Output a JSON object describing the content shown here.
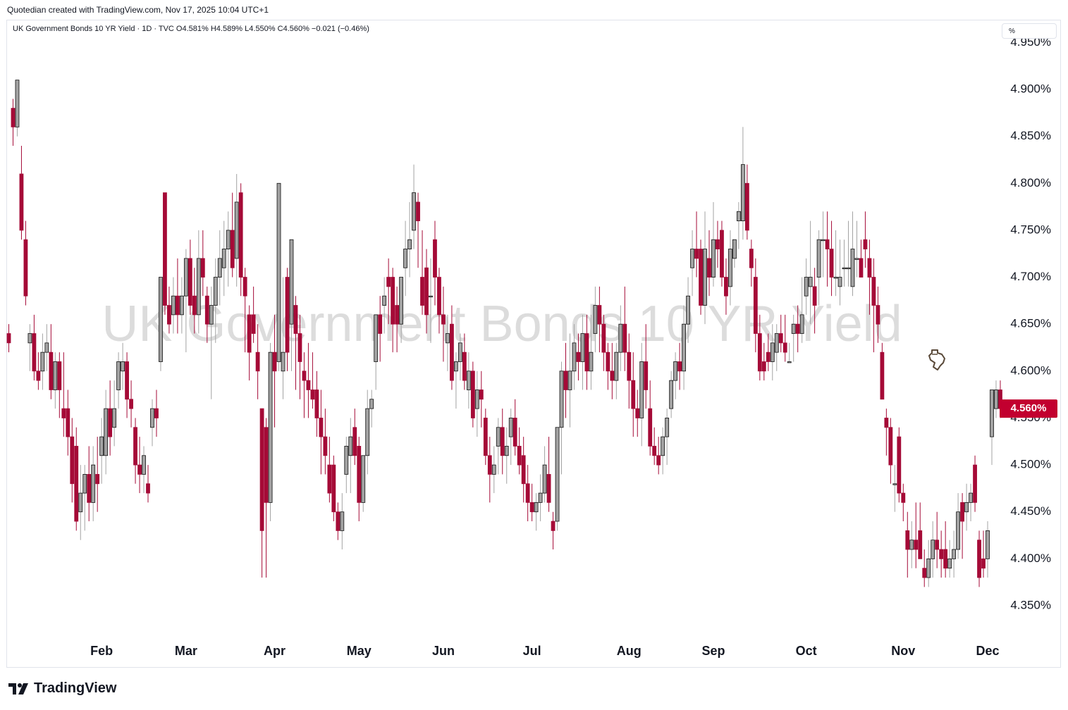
{
  "credit": "Quotedian created with TradingView.com, Nov 17, 2025 10:04 UTC+1",
  "header": {
    "symbol_line": "UK Government Bonds 10 YR Yield · 1D · TVC  O4.581%  H4.589%  L4.550%  C4.560%  −0.021 (−0.46%)",
    "unit_button": "%"
  },
  "brand": {
    "logo_text": "TradingView"
  },
  "colors": {
    "up": "#a3a3a3",
    "down": "#a50a37",
    "watermark": "#dcdcdc",
    "price_label_bg": "#c2002f"
  },
  "chart_data": {
    "type": "candlestick",
    "watermark": "UK Government Bonds 10 YR Yield",
    "last_price_label": "4.560%",
    "last_price": 4.56,
    "ylim": [
      4.3,
      4.96
    ],
    "y_ticks": [
      {
        "value": 4.95,
        "label": "4.950%"
      },
      {
        "value": 4.9,
        "label": "4.900%"
      },
      {
        "value": 4.85,
        "label": "4.850%"
      },
      {
        "value": 4.8,
        "label": "4.800%"
      },
      {
        "value": 4.75,
        "label": "4.750%"
      },
      {
        "value": 4.7,
        "label": "4.700%"
      },
      {
        "value": 4.65,
        "label": "4.650%"
      },
      {
        "value": 4.6,
        "label": "4.600%"
      },
      {
        "value": 4.55,
        "label": "4.550%"
      },
      {
        "value": 4.5,
        "label": "4.500%"
      },
      {
        "value": 4.45,
        "label": "4.450%"
      },
      {
        "value": 4.4,
        "label": "4.400%"
      },
      {
        "value": 4.35,
        "label": "4.350%"
      }
    ],
    "x_ticks": [
      {
        "index": 22,
        "label": "Feb"
      },
      {
        "index": 42,
        "label": "Mar"
      },
      {
        "index": 63,
        "label": "Apr"
      },
      {
        "index": 83,
        "label": "May"
      },
      {
        "index": 103,
        "label": "Jun"
      },
      {
        "index": 124,
        "label": "Jul"
      },
      {
        "index": 147,
        "label": "Aug"
      },
      {
        "index": 167,
        "label": "Sep"
      },
      {
        "index": 189,
        "label": "Oct"
      },
      {
        "index": 212,
        "label": "Nov"
      },
      {
        "index": 232,
        "label": "Dec"
      }
    ],
    "x_range": [
      0,
      241
    ],
    "ohlc": [
      [
        4.64,
        4.65,
        4.62,
        4.63
      ],
      [
        4.88,
        4.89,
        4.84,
        4.86
      ],
      [
        4.86,
        4.91,
        4.85,
        4.91
      ],
      [
        4.81,
        4.84,
        4.74,
        4.75
      ],
      [
        4.74,
        4.76,
        4.67,
        4.68
      ],
      [
        4.63,
        4.65,
        4.6,
        4.64
      ],
      [
        4.64,
        4.66,
        4.59,
        4.6
      ],
      [
        4.6,
        4.62,
        4.58,
        4.59
      ],
      [
        4.6,
        4.64,
        4.58,
        4.62
      ],
      [
        4.62,
        4.65,
        4.6,
        4.63
      ],
      [
        4.62,
        4.65,
        4.57,
        4.58
      ],
      [
        4.58,
        4.62,
        4.56,
        4.61
      ],
      [
        4.61,
        4.62,
        4.55,
        4.58
      ],
      [
        4.56,
        4.62,
        4.53,
        4.55
      ],
      [
        4.56,
        4.58,
        4.51,
        4.53
      ],
      [
        4.53,
        4.55,
        4.46,
        4.48
      ],
      [
        4.52,
        4.54,
        4.43,
        4.44
      ],
      [
        4.45,
        4.5,
        4.42,
        4.47
      ],
      [
        4.47,
        4.5,
        4.43,
        4.49
      ],
      [
        4.49,
        4.52,
        4.44,
        4.46
      ],
      [
        4.46,
        4.52,
        4.44,
        4.5
      ],
      [
        4.49,
        4.53,
        4.45,
        4.48
      ],
      [
        4.51,
        4.55,
        4.48,
        4.53
      ],
      [
        4.51,
        4.58,
        4.49,
        4.56
      ],
      [
        4.56,
        4.59,
        4.51,
        4.53
      ],
      [
        4.54,
        4.59,
        4.52,
        4.56
      ],
      [
        4.58,
        4.62,
        4.56,
        4.61
      ],
      [
        4.6,
        4.63,
        4.58,
        4.61
      ],
      [
        4.61,
        4.62,
        4.55,
        4.57
      ],
      [
        4.57,
        4.59,
        4.54,
        4.56
      ],
      [
        4.54,
        4.55,
        4.48,
        4.5
      ],
      [
        4.5,
        4.53,
        4.47,
        4.49
      ],
      [
        4.49,
        4.52,
        4.47,
        4.51
      ],
      [
        4.48,
        4.5,
        4.46,
        4.47
      ],
      [
        4.54,
        4.57,
        4.52,
        4.56
      ],
      [
        4.56,
        4.58,
        4.53,
        4.55
      ],
      [
        4.61,
        4.7,
        4.6,
        4.7
      ],
      [
        4.79,
        4.79,
        4.66,
        4.67
      ],
      [
        4.67,
        4.69,
        4.64,
        4.65
      ],
      [
        4.66,
        4.7,
        4.64,
        4.68
      ],
      [
        4.68,
        4.72,
        4.64,
        4.66
      ],
      [
        4.66,
        4.7,
        4.64,
        4.68
      ],
      [
        4.68,
        4.73,
        4.62,
        4.72
      ],
      [
        4.72,
        4.74,
        4.66,
        4.67
      ],
      [
        4.68,
        4.71,
        4.64,
        4.66
      ],
      [
        4.66,
        4.75,
        4.64,
        4.72
      ],
      [
        4.72,
        4.75,
        4.68,
        4.7
      ],
      [
        4.68,
        4.69,
        4.63,
        4.65
      ],
      [
        4.65,
        4.69,
        4.57,
        4.67
      ],
      [
        4.67,
        4.72,
        4.63,
        4.7
      ],
      [
        4.7,
        4.75,
        4.67,
        4.72
      ],
      [
        4.71,
        4.76,
        4.68,
        4.73
      ],
      [
        4.73,
        4.77,
        4.69,
        4.75
      ],
      [
        4.75,
        4.79,
        4.7,
        4.71
      ],
      [
        4.72,
        4.81,
        4.69,
        4.78
      ],
      [
        4.79,
        4.8,
        4.68,
        4.7
      ],
      [
        4.7,
        4.71,
        4.62,
        4.68
      ],
      [
        4.66,
        4.67,
        4.59,
        4.62
      ],
      [
        4.66,
        4.69,
        4.63,
        4.64
      ],
      [
        4.62,
        4.65,
        4.57,
        4.6
      ],
      [
        4.56,
        4.56,
        4.38,
        4.43
      ],
      [
        4.54,
        4.55,
        4.38,
        4.46
      ],
      [
        4.46,
        4.63,
        4.44,
        4.62
      ],
      [
        4.62,
        4.66,
        4.54,
        4.6
      ],
      [
        4.61,
        4.8,
        4.6,
        4.8
      ],
      [
        4.6,
        4.7,
        4.57,
        4.62
      ],
      [
        4.7,
        4.71,
        4.6,
        4.62
      ],
      [
        4.65,
        4.74,
        4.6,
        4.74
      ],
      [
        4.67,
        4.68,
        4.58,
        4.64
      ],
      [
        4.64,
        4.66,
        4.57,
        4.61
      ],
      [
        4.6,
        4.62,
        4.55,
        4.59
      ],
      [
        4.59,
        4.63,
        4.55,
        4.58
      ],
      [
        4.58,
        4.62,
        4.56,
        4.57
      ],
      [
        4.58,
        4.6,
        4.53,
        4.55
      ],
      [
        4.55,
        4.58,
        4.49,
        4.53
      ],
      [
        4.53,
        4.56,
        4.49,
        4.51
      ],
      [
        4.5,
        4.53,
        4.46,
        4.47
      ],
      [
        4.5,
        4.51,
        4.44,
        4.45
      ],
      [
        4.45,
        4.46,
        4.42,
        4.43
      ],
      [
        4.43,
        4.47,
        4.41,
        4.45
      ],
      [
        4.49,
        4.53,
        4.47,
        4.52
      ],
      [
        4.51,
        4.55,
        4.47,
        4.53
      ],
      [
        4.54,
        4.56,
        4.5,
        4.51
      ],
      [
        4.52,
        4.53,
        4.44,
        4.46
      ],
      [
        4.46,
        4.51,
        4.45,
        4.51
      ],
      [
        4.51,
        4.58,
        4.49,
        4.56
      ],
      [
        4.56,
        4.58,
        4.54,
        4.57
      ],
      [
        4.61,
        4.66,
        4.58,
        4.66
      ],
      [
        4.66,
        4.68,
        4.61,
        4.64
      ],
      [
        4.67,
        4.7,
        4.64,
        4.68
      ],
      [
        4.7,
        4.72,
        4.65,
        4.69
      ],
      [
        4.7,
        4.71,
        4.62,
        4.65
      ],
      [
        4.67,
        4.69,
        4.62,
        4.65
      ],
      [
        4.65,
        4.7,
        4.63,
        4.7
      ],
      [
        4.71,
        4.76,
        4.68,
        4.73
      ],
      [
        4.73,
        4.78,
        4.7,
        4.74
      ],
      [
        4.75,
        4.82,
        4.73,
        4.79
      ],
      [
        4.78,
        4.79,
        4.71,
        4.76
      ],
      [
        4.7,
        4.75,
        4.66,
        4.67
      ],
      [
        4.71,
        4.73,
        4.64,
        4.66
      ],
      [
        4.68,
        4.72,
        4.63,
        4.68
      ],
      [
        4.74,
        4.76,
        4.67,
        4.7
      ],
      [
        4.7,
        4.71,
        4.64,
        4.66
      ],
      [
        4.66,
        4.69,
        4.61,
        4.65
      ],
      [
        4.63,
        4.66,
        4.6,
        4.64
      ],
      [
        4.65,
        4.67,
        4.58,
        4.59
      ],
      [
        4.6,
        4.62,
        4.56,
        4.61
      ],
      [
        4.61,
        4.64,
        4.59,
        4.63
      ],
      [
        4.62,
        4.64,
        4.58,
        4.59
      ],
      [
        4.58,
        4.62,
        4.56,
        4.6
      ],
      [
        4.6,
        4.61,
        4.54,
        4.55
      ],
      [
        4.56,
        4.6,
        4.53,
        4.58
      ],
      [
        4.58,
        4.6,
        4.54,
        4.57
      ],
      [
        4.55,
        4.56,
        4.5,
        4.51
      ],
      [
        4.51,
        4.53,
        4.46,
        4.49
      ],
      [
        4.49,
        4.52,
        4.47,
        4.5
      ],
      [
        4.52,
        4.55,
        4.49,
        4.54
      ],
      [
        4.54,
        4.56,
        4.49,
        4.51
      ],
      [
        4.51,
        4.54,
        4.48,
        4.52
      ],
      [
        4.53,
        4.56,
        4.5,
        4.55
      ],
      [
        4.55,
        4.57,
        4.51,
        4.52
      ],
      [
        4.52,
        4.54,
        4.49,
        4.5
      ],
      [
        4.51,
        4.53,
        4.46,
        4.48
      ],
      [
        4.48,
        4.5,
        4.44,
        4.46
      ],
      [
        4.46,
        4.48,
        4.44,
        4.45
      ],
      [
        4.45,
        4.47,
        4.43,
        4.46
      ],
      [
        4.46,
        4.49,
        4.44,
        4.47
      ],
      [
        4.47,
        4.52,
        4.46,
        4.5
      ],
      [
        4.49,
        4.53,
        4.45,
        4.46
      ],
      [
        4.44,
        4.45,
        4.41,
        4.43
      ],
      [
        4.44,
        4.54,
        4.43,
        4.54
      ],
      [
        4.54,
        4.61,
        4.49,
        4.6
      ],
      [
        4.6,
        4.63,
        4.55,
        4.58
      ],
      [
        4.58,
        4.64,
        4.54,
        4.6
      ],
      [
        4.6,
        4.65,
        4.58,
        4.63
      ],
      [
        4.62,
        4.64,
        4.59,
        4.61
      ],
      [
        4.61,
        4.66,
        4.58,
        4.64
      ],
      [
        4.64,
        4.66,
        4.58,
        4.6
      ],
      [
        4.6,
        4.66,
        4.58,
        4.62
      ],
      [
        4.64,
        4.69,
        4.62,
        4.67
      ],
      [
        4.67,
        4.69,
        4.62,
        4.65
      ],
      [
        4.65,
        4.66,
        4.6,
        4.62
      ],
      [
        4.62,
        4.63,
        4.58,
        4.6
      ],
      [
        4.6,
        4.63,
        4.57,
        4.59
      ],
      [
        4.59,
        4.63,
        4.57,
        4.62
      ],
      [
        4.62,
        4.67,
        4.6,
        4.65
      ],
      [
        4.65,
        4.69,
        4.6,
        4.62
      ],
      [
        4.62,
        4.64,
        4.56,
        4.59
      ],
      [
        4.59,
        4.62,
        4.53,
        4.56
      ],
      [
        4.56,
        4.58,
        4.53,
        4.55
      ],
      [
        4.55,
        4.63,
        4.52,
        4.61
      ],
      [
        4.61,
        4.65,
        4.56,
        4.58
      ],
      [
        4.56,
        4.59,
        4.51,
        4.52
      ],
      [
        4.52,
        4.54,
        4.5,
        4.51
      ],
      [
        4.51,
        4.53,
        4.49,
        4.5
      ],
      [
        4.51,
        4.54,
        4.49,
        4.53
      ],
      [
        4.53,
        4.56,
        4.5,
        4.55
      ],
      [
        4.56,
        4.6,
        4.55,
        4.59
      ],
      [
        4.59,
        4.62,
        4.57,
        4.61
      ],
      [
        4.61,
        4.63,
        4.58,
        4.6
      ],
      [
        4.6,
        4.67,
        4.58,
        4.65
      ],
      [
        4.65,
        4.7,
        4.63,
        4.68
      ],
      [
        4.71,
        4.75,
        4.68,
        4.73
      ],
      [
        4.73,
        4.77,
        4.7,
        4.72
      ],
      [
        4.73,
        4.74,
        4.66,
        4.67
      ],
      [
        4.67,
        4.77,
        4.65,
        4.73
      ],
      [
        4.72,
        4.75,
        4.68,
        4.7
      ],
      [
        4.7,
        4.78,
        4.69,
        4.74
      ],
      [
        4.74,
        4.76,
        4.71,
        4.73
      ],
      [
        4.75,
        4.76,
        4.69,
        4.7
      ],
      [
        4.7,
        4.72,
        4.66,
        4.68
      ],
      [
        4.69,
        4.75,
        4.67,
        4.73
      ],
      [
        4.72,
        4.74,
        4.71,
        4.74
      ],
      [
        4.76,
        4.78,
        4.73,
        4.77
      ],
      [
        4.76,
        4.86,
        4.74,
        4.82
      ],
      [
        4.8,
        4.82,
        4.74,
        4.75
      ],
      [
        4.73,
        4.74,
        4.69,
        4.71
      ],
      [
        4.7,
        4.72,
        4.62,
        4.64
      ],
      [
        4.64,
        4.66,
        4.59,
        4.6
      ],
      [
        4.61,
        4.63,
        4.59,
        4.6
      ],
      [
        4.62,
        4.64,
        4.6,
        4.61
      ],
      [
        4.61,
        4.65,
        4.59,
        4.63
      ],
      [
        4.62,
        4.65,
        4.6,
        4.64
      ],
      [
        4.64,
        4.66,
        4.62,
        4.63
      ],
      [
        4.63,
        4.66,
        4.61,
        4.62
      ],
      [
        4.61,
        4.63,
        4.61,
        4.61
      ],
      [
        4.64,
        4.66,
        4.61,
        4.65
      ],
      [
        4.65,
        4.67,
        4.62,
        4.64
      ],
      [
        4.64,
        4.7,
        4.63,
        4.66
      ],
      [
        4.68,
        4.72,
        4.66,
        4.7
      ],
      [
        4.69,
        4.76,
        4.65,
        4.7
      ],
      [
        4.69,
        4.71,
        4.64,
        4.67
      ],
      [
        4.7,
        4.75,
        4.67,
        4.74
      ],
      [
        4.74,
        4.77,
        4.7,
        4.74
      ],
      [
        4.74,
        4.77,
        4.69,
        4.73
      ],
      [
        4.73,
        4.76,
        4.68,
        4.7
      ],
      [
        4.7,
        4.75,
        4.68,
        4.7
      ],
      [
        4.69,
        4.74,
        4.67,
        4.7
      ],
      [
        4.71,
        4.74,
        4.69,
        4.71
      ],
      [
        4.71,
        4.76,
        4.69,
        4.71
      ],
      [
        4.69,
        4.77,
        4.68,
        4.73
      ],
      [
        4.72,
        4.76,
        4.7,
        4.72
      ],
      [
        4.72,
        4.74,
        4.7,
        4.7
      ],
      [
        4.74,
        4.77,
        4.71,
        4.73
      ],
      [
        4.72,
        4.74,
        4.66,
        4.7
      ],
      [
        4.7,
        4.72,
        4.62,
        4.67
      ],
      [
        4.67,
        4.69,
        4.63,
        4.65
      ],
      [
        4.62,
        4.63,
        4.57,
        4.57
      ],
      [
        4.55,
        4.56,
        4.51,
        4.54
      ],
      [
        4.54,
        4.55,
        4.48,
        4.5
      ],
      [
        4.48,
        4.5,
        4.45,
        4.48
      ],
      [
        4.53,
        4.54,
        4.46,
        4.47
      ],
      [
        4.47,
        4.48,
        4.44,
        4.46
      ],
      [
        4.43,
        4.45,
        4.38,
        4.41
      ],
      [
        4.41,
        4.44,
        4.39,
        4.42
      ],
      [
        4.42,
        4.46,
        4.39,
        4.41
      ],
      [
        4.43,
        4.46,
        4.4,
        4.4
      ],
      [
        4.39,
        4.41,
        4.37,
        4.38
      ],
      [
        4.38,
        4.42,
        4.37,
        4.4
      ],
      [
        4.4,
        4.44,
        4.38,
        4.42
      ],
      [
        4.42,
        4.45,
        4.39,
        4.41
      ],
      [
        4.41,
        4.43,
        4.38,
        4.4
      ],
      [
        4.41,
        4.44,
        4.38,
        4.39
      ],
      [
        4.39,
        4.42,
        4.38,
        4.4
      ],
      [
        4.4,
        4.43,
        4.38,
        4.41
      ],
      [
        4.41,
        4.47,
        4.4,
        4.45
      ],
      [
        4.46,
        4.47,
        4.4,
        4.44
      ],
      [
        4.45,
        4.48,
        4.43,
        4.46
      ],
      [
        4.46,
        4.48,
        4.44,
        4.47
      ],
      [
        4.5,
        4.51,
        4.45,
        4.46
      ],
      [
        4.42,
        4.43,
        4.37,
        4.38
      ],
      [
        4.4,
        4.43,
        4.38,
        4.39
      ],
      [
        4.4,
        4.44,
        4.38,
        4.43
      ],
      [
        4.53,
        4.58,
        4.5,
        4.58
      ],
      [
        4.56,
        4.59,
        4.55,
        4.58
      ],
      [
        4.58,
        4.59,
        4.55,
        4.56
      ]
    ]
  }
}
